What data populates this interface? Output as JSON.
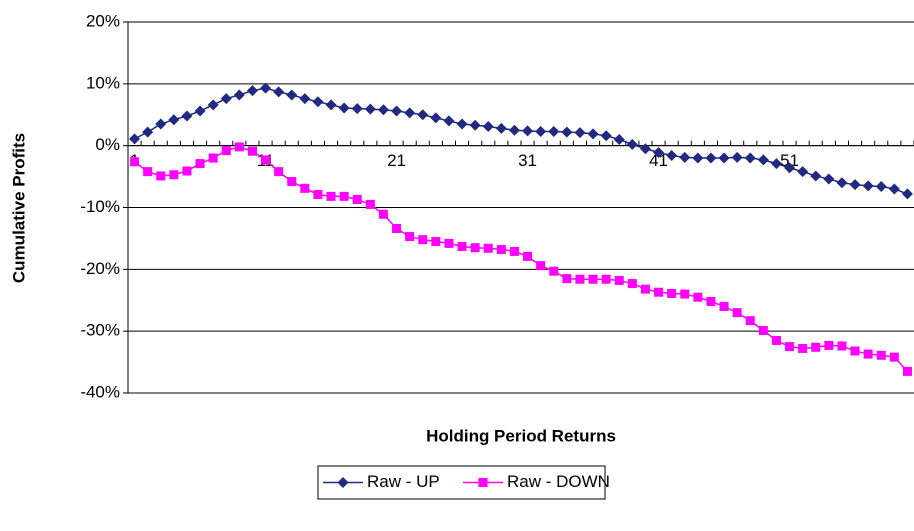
{
  "chart_data": {
    "type": "line",
    "y_label": "Cumulative Profits",
    "x_label": "Holding Period Returns",
    "categories": [
      1,
      null,
      null,
      null,
      null,
      null,
      null,
      null,
      null,
      null,
      11,
      null,
      null,
      null,
      null,
      null,
      null,
      null,
      null,
      null,
      21,
      null,
      null,
      null,
      null,
      null,
      null,
      null,
      null,
      null,
      31,
      null,
      null,
      null,
      null,
      null,
      null,
      null,
      null,
      null,
      41,
      null,
      null,
      null,
      null,
      null,
      null,
      null,
      null,
      null,
      51,
      null,
      null,
      null,
      null,
      null,
      null,
      null,
      null,
      null
    ],
    "series": [
      {
        "name": "Raw - UP",
        "color": "#1f2a80",
        "marker": "diamond",
        "values": [
          1.1,
          2.2,
          3.5,
          4.2,
          4.8,
          5.6,
          6.6,
          7.6,
          8.2,
          8.9,
          9.3,
          8.7,
          8.2,
          7.6,
          7.1,
          6.6,
          6.1,
          6.0,
          5.9,
          5.8,
          5.6,
          5.3,
          5.0,
          4.5,
          4.0,
          3.5,
          3.3,
          3.1,
          2.8,
          2.5,
          2.4,
          2.3,
          2.3,
          2.2,
          2.1,
          1.9,
          1.6,
          1.0,
          0.2,
          -0.5,
          -1.1,
          -1.6,
          -1.9,
          -2.0,
          -2.0,
          -2.0,
          -1.9,
          -2.0,
          -2.3,
          -2.9,
          -3.6,
          -4.2,
          -4.9,
          -5.4,
          -6.0,
          -6.3,
          -6.5,
          -6.6,
          -7.0,
          -7.8
        ]
      },
      {
        "name": "Raw - DOWN",
        "color": "#ff00ff",
        "marker": "square",
        "values": [
          -2.6,
          -4.2,
          -4.9,
          -4.7,
          -4.1,
          -2.9,
          -2.0,
          -0.8,
          -0.2,
          -0.9,
          -2.3,
          -4.2,
          -5.8,
          -6.9,
          -7.9,
          -8.2,
          -8.2,
          -8.7,
          -9.5,
          -11.1,
          -13.4,
          -14.7,
          -15.2,
          -15.5,
          -15.8,
          -16.3,
          -16.5,
          -16.6,
          -16.8,
          -17.1,
          -17.9,
          -19.4,
          -20.3,
          -21.5,
          -21.6,
          -21.6,
          -21.6,
          -21.8,
          -22.3,
          -23.2,
          -23.7,
          -23.9,
          -24.0,
          -24.5,
          -25.2,
          -26.0,
          -27.0,
          -28.3,
          -29.9,
          -31.5,
          -32.5,
          -32.8,
          -32.6,
          -32.3,
          -32.4,
          -33.2,
          -33.7,
          -33.9,
          -34.2,
          -36.5
        ]
      }
    ],
    "ylim": [
      -40,
      20
    ],
    "yticks": [
      {
        "value": -40,
        "label": "-40%"
      },
      {
        "value": -30,
        "label": "-30%"
      },
      {
        "value": -20,
        "label": "-20%"
      },
      {
        "value": -10,
        "label": "-10%"
      },
      {
        "value": 0,
        "label": "0%"
      },
      {
        "value": 10,
        "label": "10%"
      },
      {
        "value": 20,
        "label": "20%"
      }
    ],
    "grid": true,
    "legend": "bottom"
  }
}
